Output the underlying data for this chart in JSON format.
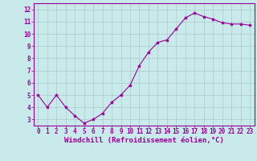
{
  "x": [
    0,
    1,
    2,
    3,
    4,
    5,
    6,
    7,
    8,
    9,
    10,
    11,
    12,
    13,
    14,
    15,
    16,
    17,
    18,
    19,
    20,
    21,
    22,
    23
  ],
  "y": [
    5.0,
    4.0,
    5.0,
    4.0,
    3.3,
    2.7,
    3.0,
    3.5,
    4.4,
    5.0,
    5.8,
    7.4,
    8.5,
    9.3,
    9.5,
    10.4,
    11.3,
    11.7,
    11.4,
    11.2,
    10.9,
    10.8,
    10.8,
    10.7
  ],
  "line_color": "#990099",
  "marker": "*",
  "marker_size": 3,
  "background_color": "#c8eaea",
  "grid_color": "#b0c8c8",
  "xlabel": "Windchill (Refroidissement éolien,°C)",
  "ylabel": "",
  "xlim": [
    -0.5,
    23.5
  ],
  "ylim": [
    2.5,
    12.5
  ],
  "yticks": [
    3,
    4,
    5,
    6,
    7,
    8,
    9,
    10,
    11,
    12
  ],
  "xticks": [
    0,
    1,
    2,
    3,
    4,
    5,
    6,
    7,
    8,
    9,
    10,
    11,
    12,
    13,
    14,
    15,
    16,
    17,
    18,
    19,
    20,
    21,
    22,
    23
  ],
  "xlabel_color": "#990099",
  "tick_color": "#990099",
  "spine_color": "#990099",
  "font_size_ticks": 5.5,
  "font_size_xlabel": 6.5,
  "linewidth": 0.8
}
